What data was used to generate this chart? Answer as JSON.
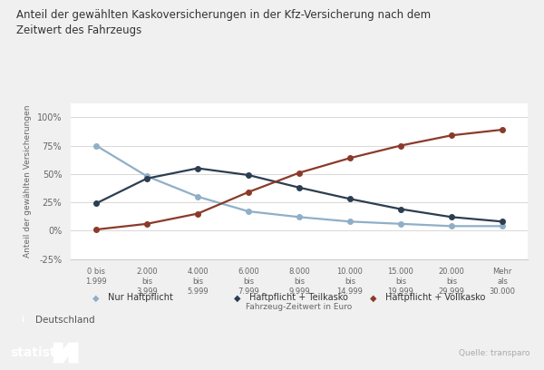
{
  "title": "Anteil der gewählten Kaskoversicherungen in der Kfz-Versicherung nach dem\nZeitwert des Fahrzeugs",
  "xlabel": "Fahrzeug-Zeitwert in Euro",
  "ylabel": "Anteil der gewählten Versicherungen",
  "categories": [
    "0 bis\n1.999",
    "2.000\nbis\n3.999",
    "4.000\nbis\n5.999",
    "6.000\nbis\n7.999",
    "8.000\nbis\n9.999",
    "10.000\nbis\n14.999",
    "15.000\nbis\n19.999",
    "20.000\nbis\n29.999",
    "Mehr\nals\n30.000"
  ],
  "nur_haftpflicht": [
    75,
    48,
    30,
    17,
    12,
    8,
    6,
    4,
    4
  ],
  "haftpflicht_teilkasko": [
    24,
    46,
    55,
    49,
    38,
    28,
    19,
    12,
    8
  ],
  "haftpflicht_vollkasko": [
    1,
    6,
    15,
    34,
    51,
    64,
    75,
    84,
    89
  ],
  "color_nur": "#8fafc8",
  "color_teil": "#2c3e50",
  "color_voll": "#8b3a2a",
  "ylim": [
    -25,
    112
  ],
  "yticks": [
    -25,
    0,
    25,
    50,
    75,
    100
  ],
  "ytick_labels": [
    "-25%",
    "0%",
    "25%",
    "50%",
    "75%",
    "100%"
  ],
  "legend_labels": [
    "Nur Haftpflicht",
    "Haftpflicht + Teilkasko",
    "Haftpflicht + Vollkasko"
  ],
  "source_text": "Quelle: transparo",
  "footer_text": "Deutschland",
  "statista_bg": "#152b3e",
  "bg_color": "#f0f0f0",
  "chart_bg": "#ffffff"
}
